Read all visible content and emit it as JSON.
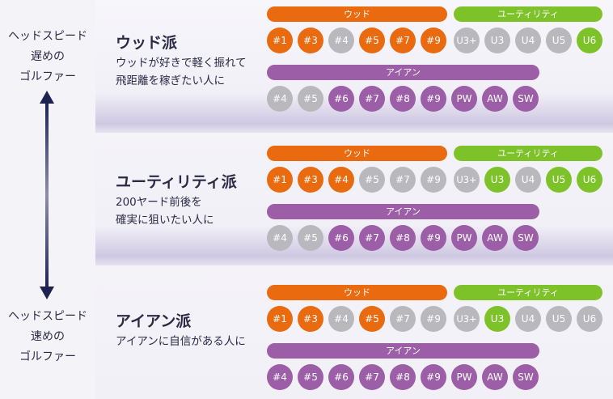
{
  "colors": {
    "wood": "#e96a0f",
    "utility": "#7ec22a",
    "iron": "#9b5ea7",
    "inactive": "#b8b8bd"
  },
  "speed_axis": {
    "top_label": "ヘッドスピード\n遅めの\nゴルファー",
    "bottom_label": "ヘッドスピード\n速めの\nゴルファー"
  },
  "group_labels": {
    "wood": "ウッド",
    "utility": "ユーティリティ",
    "iron": "アイアン"
  },
  "wood_clubs": [
    "#1",
    "#3",
    "#4",
    "#5",
    "#7",
    "#9"
  ],
  "utility_clubs": [
    "U3+",
    "U3",
    "U4",
    "U5",
    "U6"
  ],
  "iron_clubs": [
    "#4",
    "#5",
    "#6",
    "#7",
    "#8",
    "#9",
    "PW",
    "AW",
    "SW"
  ],
  "sections": [
    {
      "title": "ウッド派",
      "description": "ウッドが好きで軽く振れて\n飛距離を稼ぎたい人に",
      "wood_active": [
        true,
        true,
        false,
        true,
        true,
        true
      ],
      "utility_active": [
        false,
        false,
        false,
        false,
        true
      ],
      "iron_active": [
        false,
        false,
        true,
        true,
        true,
        true,
        true,
        true,
        true
      ]
    },
    {
      "title": "ユーティリティ派",
      "description": "200ヤード前後を\n確実に狙いたい人に",
      "wood_active": [
        true,
        true,
        true,
        false,
        false,
        false
      ],
      "utility_active": [
        false,
        true,
        false,
        true,
        true
      ],
      "iron_active": [
        false,
        false,
        true,
        true,
        true,
        true,
        true,
        true,
        true
      ]
    },
    {
      "title": "アイアン派",
      "description": "アイアンに自信がある人に",
      "wood_active": [
        true,
        true,
        false,
        true,
        false,
        false
      ],
      "utility_active": [
        false,
        true,
        false,
        false,
        false
      ],
      "iron_active": [
        true,
        true,
        true,
        true,
        true,
        true,
        true,
        true,
        true
      ]
    }
  ]
}
